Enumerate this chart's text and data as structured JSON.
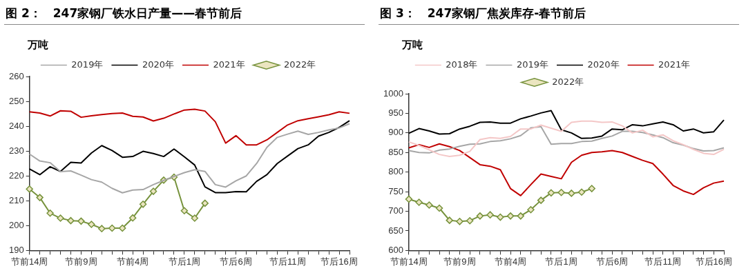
{
  "chart_data": [
    {
      "type": "line",
      "title": "图 2：　247家钢厂铁水日产量——春节前后",
      "ylabel": "万吨",
      "categories": [
        "节前14周",
        null,
        null,
        null,
        null,
        "节前9周",
        null,
        null,
        null,
        null,
        "节前4周",
        null,
        null,
        null,
        null,
        "节后1周",
        null,
        null,
        null,
        null,
        "节后6周",
        null,
        null,
        null,
        null,
        "节后11周",
        null,
        null,
        null,
        null,
        "节后16周",
        null
      ],
      "ylim": [
        190,
        260
      ],
      "yticks": [
        190,
        200,
        210,
        220,
        230,
        240,
        250,
        260
      ],
      "grid": false,
      "legend": "top",
      "marker": "none",
      "series": [
        {
          "name": "2019年",
          "color": "#a6a6a6",
          "values": [
            228.8,
            226,
            225.3,
            221.7,
            222,
            220.3,
            218.5,
            217.5,
            215,
            213.2,
            214.3,
            214.5,
            216.5,
            218.2,
            219.8,
            221.3,
            222.5,
            221.8,
            216.5,
            215.5,
            218,
            220,
            225,
            231.5,
            235.5,
            236.8,
            238,
            236.7,
            237.5,
            238.5,
            239.3,
            241
          ]
        },
        {
          "name": "2020年",
          "color": "#000000",
          "values": [
            222.8,
            220.5,
            223.7,
            221.8,
            225.5,
            225.2,
            229.2,
            232.2,
            230.2,
            227.5,
            227.8,
            229.9,
            229,
            227.8,
            230.8,
            227.7,
            224.4,
            215.6,
            213.3,
            213.3,
            213.7,
            213.6,
            217.8,
            220.5,
            225,
            228,
            231,
            232.5,
            236,
            237.5,
            239.5,
            242.2
          ]
        },
        {
          "name": "2021年",
          "color": "#c00000",
          "values": [
            245.8,
            245.3,
            244.1,
            246.2,
            246,
            243.6,
            244.2,
            244.7,
            245.1,
            245.3,
            244,
            243.7,
            242.1,
            243.2,
            244.9,
            246.5,
            246.8,
            246.1,
            241.8,
            233.2,
            236.2,
            232.5,
            232.5,
            234.5,
            237.5,
            240.5,
            242.2,
            243,
            243.8,
            244.6,
            245.8,
            245.2
          ]
        },
        {
          "name": "2022年",
          "color": "#76923c",
          "marker": "diamond",
          "values": [
            214.7,
            211.3,
            205,
            203,
            202,
            201.8,
            200.5,
            198.8,
            199,
            199,
            203.1,
            208.6,
            213.8,
            218.3,
            219.5,
            206,
            203,
            209,
            null,
            null,
            null,
            null,
            null,
            null,
            null,
            null,
            null,
            null,
            null,
            null,
            null,
            null
          ]
        }
      ]
    },
    {
      "type": "line",
      "title": "图 3：　247家钢厂焦炭库存-春节前后",
      "ylabel": "万吨",
      "categories": [
        "节前14周",
        null,
        null,
        null,
        null,
        "节前9周",
        null,
        null,
        null,
        null,
        "节前4周",
        null,
        null,
        null,
        null,
        "节后1周",
        null,
        null,
        null,
        null,
        "节后6周",
        null,
        null,
        null,
        null,
        "节后11周",
        null,
        null,
        null,
        null,
        "节后16周",
        null
      ],
      "ylim": [
        600,
        1000
      ],
      "yticks": [
        600,
        650,
        700,
        750,
        800,
        850,
        900,
        950,
        1000
      ],
      "grid": false,
      "legend": "top",
      "marker": "none",
      "series": [
        {
          "name": "2018年",
          "color": "#f4c7c7",
          "values": [
            877,
            868,
            857,
            845,
            840,
            843,
            853,
            883,
            888,
            886,
            891,
            910,
            910,
            920,
            912,
            904,
            927,
            930,
            930,
            927,
            928,
            918,
            900,
            907,
            890,
            895,
            880,
            870,
            858,
            848,
            845,
            858
          ]
        },
        {
          "name": "2019年",
          "color": "#a6a6a6",
          "values": [
            855,
            850,
            849,
            856,
            859,
            866,
            871,
            872,
            878,
            880,
            885,
            893,
            913,
            916,
            871,
            873,
            873,
            878,
            879,
            886,
            892,
            904,
            904,
            901,
            895,
            888,
            875,
            869,
            860,
            854,
            855,
            862
          ]
        },
        {
          "name": "2020年",
          "color": "#000000",
          "values": [
            899,
            911,
            905,
            897,
            898,
            910,
            917,
            927,
            928,
            925,
            925,
            936,
            943,
            951,
            957,
            908,
            900,
            886,
            887,
            892,
            910,
            908,
            921,
            918,
            923,
            928,
            921,
            905,
            910,
            900,
            903,
            933
          ]
        },
        {
          "name": "2021年",
          "color": "#c00000",
          "values": [
            862,
            870,
            863,
            872,
            865,
            855,
            837,
            819,
            815,
            806,
            758,
            740,
            768,
            795,
            789,
            783,
            825,
            843,
            850,
            852,
            855,
            850,
            840,
            830,
            822,
            795,
            766,
            752,
            743,
            760,
            772,
            777
          ]
        },
        {
          "name": "2022年",
          "color": "#76923c",
          "marker": "diamond",
          "values": [
            731,
            723,
            716,
            708,
            677,
            674,
            676,
            688,
            691,
            685,
            688,
            688,
            704,
            728,
            747,
            748,
            746,
            749,
            758,
            null,
            null,
            null,
            null,
            null,
            null,
            null,
            null,
            null,
            null,
            null,
            null,
            null
          ]
        }
      ]
    }
  ]
}
